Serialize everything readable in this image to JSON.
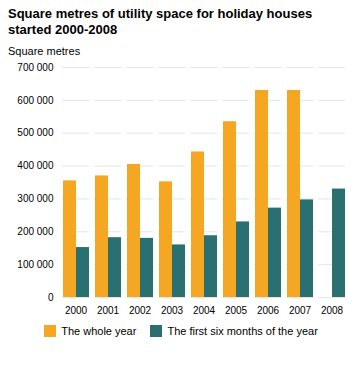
{
  "chart_data": {
    "type": "bar",
    "title": "Square metres of utility space for holiday houses\nstarted 2000-2008",
    "y_label": "Square metres",
    "categories": [
      "2000",
      "2001",
      "2002",
      "2003",
      "2004",
      "2005",
      "2006",
      "2007",
      "2008"
    ],
    "series": [
      {
        "name": "The whole year",
        "color": "#F5A623",
        "values": [
          355000,
          370000,
          405000,
          352000,
          443000,
          535000,
          630000,
          630000,
          0
        ]
      },
      {
        "name": "The first six months of the year",
        "color": "#2A7070",
        "values": [
          152000,
          182000,
          180000,
          160000,
          188000,
          230000,
          272000,
          297000,
          330000
        ]
      }
    ],
    "ylim": [
      0,
      700000
    ],
    "yticks": [
      0,
      {
        "value": 100000,
        "label": "100 000"
      },
      {
        "value": 200000,
        "label": "200 000"
      },
      {
        "value": 300000,
        "label": "300 000"
      },
      {
        "value": 400000,
        "label": "400 000"
      },
      {
        "value": 500000,
        "label": "500 000"
      },
      {
        "value": 600000,
        "label": "600 000"
      },
      {
        "value": 700000,
        "label": "700 000"
      }
    ],
    "grid": true,
    "legend": "bottom"
  }
}
